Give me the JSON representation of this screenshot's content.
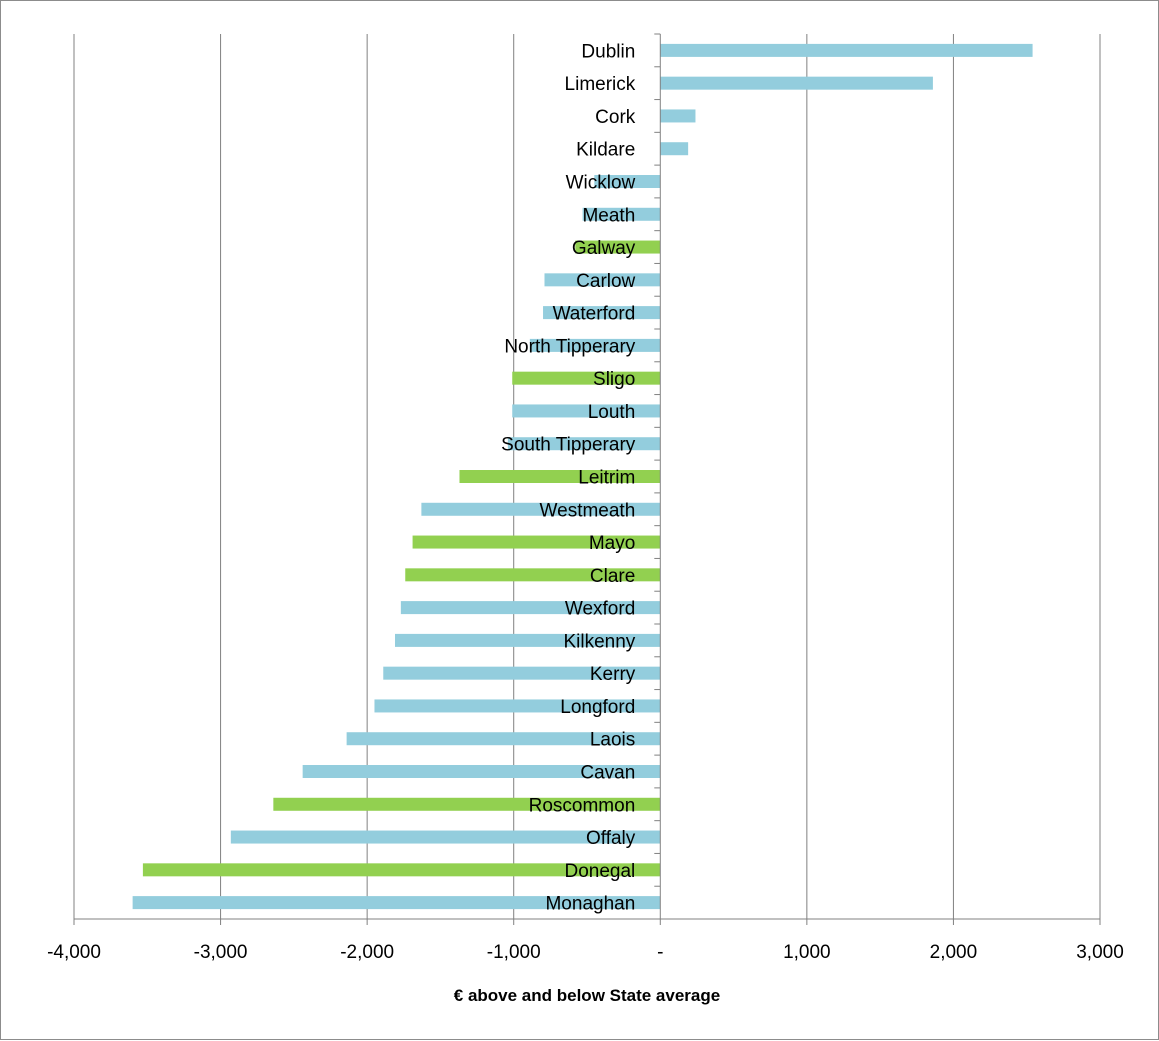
{
  "chart_data": {
    "type": "bar",
    "orientation": "horizontal",
    "xlabel": "€ above and below State average",
    "xlim": [
      -4000,
      3000
    ],
    "x_ticks": [
      -4000,
      -3000,
      -2000,
      -1000,
      0,
      1000,
      2000,
      3000
    ],
    "x_tick_labels": [
      "-4,000",
      "-3,000",
      "-2,000",
      "-1,000",
      "-",
      "1,000",
      "2,000",
      "3,000"
    ],
    "grid": "vertical",
    "legend": "none",
    "colors": {
      "blue": "#93cddd",
      "green": "#92d050",
      "axis": "#808080",
      "grid": "#808080"
    },
    "categories": [
      "Dublin",
      "Limerick",
      "Cork",
      "Kildare",
      "Wicklow",
      "Meath",
      "Galway",
      "Carlow",
      "Waterford",
      "North Tipperary",
      "Sligo",
      "Louth",
      "South Tipperary",
      "Leitrim",
      "Westmeath",
      "Mayo",
      "Clare",
      "Wexford",
      "Kilkenny",
      "Kerry",
      "Longford",
      "Laois",
      "Cavan",
      "Roscommon",
      "Offaly",
      "Donegal",
      "Monaghan"
    ],
    "values": [
      2540,
      1860,
      240,
      190,
      -450,
      -530,
      -580,
      -790,
      -800,
      -890,
      -1010,
      -1010,
      -1040,
      -1370,
      -1630,
      -1690,
      -1740,
      -1770,
      -1810,
      -1890,
      -1950,
      -2140,
      -2440,
      -2640,
      -2930,
      -3530,
      -3600
    ],
    "bar_colors": [
      "blue",
      "blue",
      "blue",
      "blue",
      "blue",
      "blue",
      "green",
      "blue",
      "blue",
      "blue",
      "green",
      "blue",
      "blue",
      "green",
      "blue",
      "green",
      "green",
      "blue",
      "blue",
      "blue",
      "blue",
      "blue",
      "blue",
      "green",
      "blue",
      "green",
      "blue"
    ]
  }
}
